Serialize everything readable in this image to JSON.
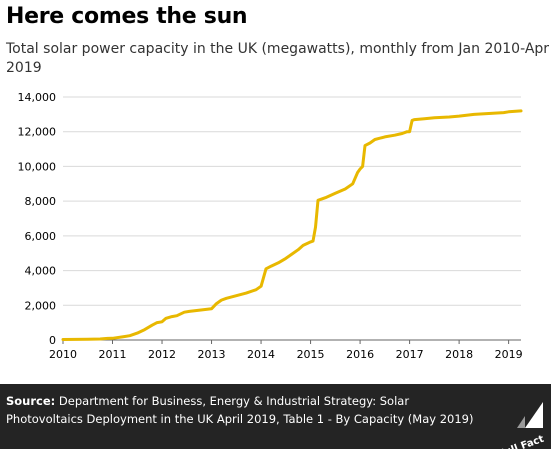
{
  "title": "Here comes the sun",
  "subtitle": "Total solar power capacity in the UK (megawatts), monthly from Jan 2010-Apr 2019",
  "footer": {
    "source_label": "Source:",
    "source_text": "Department for Business, Energy & Industrial Strategy: Solar Photovoltaics Deployment in the UK April 2019, Table 1 - By Capacity (May 2019)",
    "logo_text": "Full Fact"
  },
  "colors": {
    "line": "#e8b800",
    "grid": "#d9d9d9",
    "footer_bg": "#242424"
  },
  "chart_data": {
    "type": "line",
    "title": "Here comes the sun",
    "xlabel": "",
    "ylabel": "",
    "xlim": [
      2010,
      2019.25
    ],
    "ylim": [
      0,
      14000
    ],
    "grid": true,
    "x_ticks": [
      2010,
      2011,
      2012,
      2013,
      2014,
      2015,
      2016,
      2017,
      2018,
      2019
    ],
    "y_ticks": [
      0,
      2000,
      4000,
      6000,
      8000,
      10000,
      12000,
      14000
    ],
    "y_tick_labels": [
      "0",
      "2,000",
      "4,000",
      "6,000",
      "8,000",
      "10,000",
      "12,000",
      "14,000"
    ],
    "series": [
      {
        "x": [
          2010.0,
          2010.5,
          2010.75,
          2010.9,
          2011.0,
          2011.2,
          2011.35,
          2011.5,
          2011.65,
          2011.8,
          2011.9,
          2012.0,
          2012.08,
          2012.2,
          2012.3,
          2012.45,
          2012.55,
          2012.7,
          2012.85,
          2013.0,
          2013.1,
          2013.2,
          2013.3,
          2013.5,
          2013.7,
          2013.9,
          2014.0,
          2014.1,
          2014.2,
          2014.35,
          2014.5,
          2014.6,
          2014.75,
          2014.85,
          2015.0,
          2015.05,
          2015.1,
          2015.15,
          2015.3,
          2015.5,
          2015.7,
          2015.85,
          2015.95,
          2016.0,
          2016.05,
          2016.1,
          2016.2,
          2016.3,
          2016.5,
          2016.7,
          2016.85,
          2016.95,
          2017.0,
          2017.05,
          2017.1,
          2017.3,
          2017.5,
          2017.8,
          2018.0,
          2018.3,
          2018.6,
          2018.9,
          2019.0,
          2019.25
        ],
        "y": [
          30,
          40,
          60,
          90,
          100,
          180,
          250,
          400,
          600,
          850,
          1000,
          1050,
          1250,
          1350,
          1400,
          1600,
          1650,
          1700,
          1750,
          1800,
          2100,
          2300,
          2400,
          2550,
          2700,
          2900,
          3100,
          4100,
          4250,
          4450,
          4700,
          4900,
          5200,
          5450,
          5650,
          5700,
          6500,
          8050,
          8200,
          8450,
          8700,
          9000,
          9650,
          9850,
          10000,
          11200,
          11350,
          11550,
          11700,
          11800,
          11900,
          12000,
          12000,
          12650,
          12700,
          12750,
          12800,
          12850,
          12900,
          13000,
          13050,
          13100,
          13150,
          13200
        ]
      }
    ]
  }
}
